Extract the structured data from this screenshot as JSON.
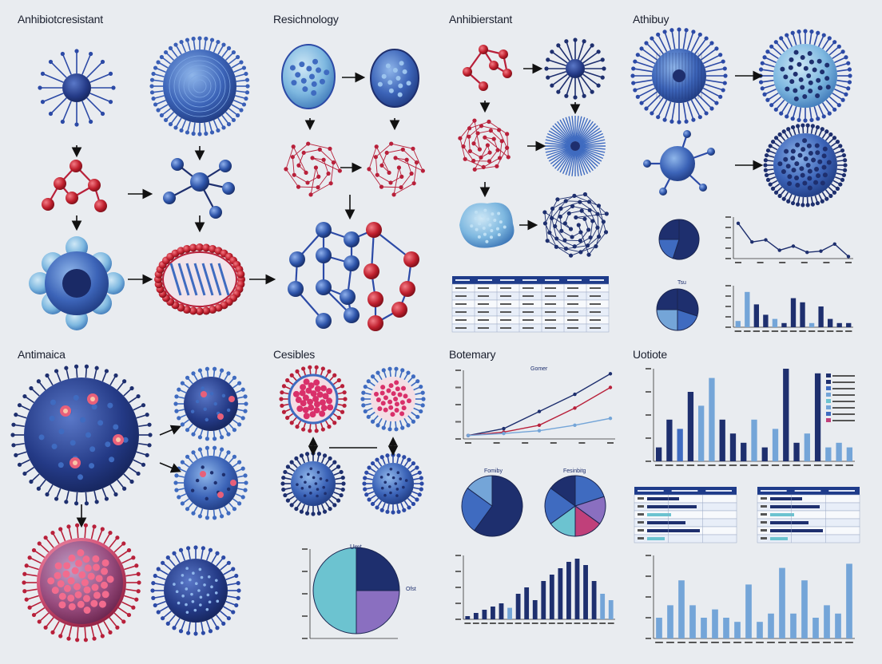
{
  "panels": {
    "p1": "Anhibiotcresistant",
    "p2": "Resichnology",
    "p3": "Anhibierstant",
    "p4": "Athibuy",
    "p5": "Antimaica",
    "p6": "Cesibles",
    "p7": "Botemary",
    "p8": "Uotiote"
  },
  "labels": {
    "pie_left_title": "Tsu",
    "line_title": "Gomer",
    "pie_left": "Fomiby",
    "pie_right": "Fesinbitg",
    "pie_bottom": "Umt",
    "pie_bottom_side": "Ofst"
  },
  "colors": {
    "navy": "#1e2f6e",
    "blue": "#3f6bc0",
    "light_blue": "#74a5d8",
    "teal": "#6cc3d0",
    "red": "#b8203a",
    "purple": "#8a6fc0",
    "background": "#e9ecf0"
  },
  "chart_data": [
    {
      "type": "pie",
      "name": "right-top-pie",
      "values": [
        55,
        20,
        25
      ]
    },
    {
      "type": "line",
      "name": "right-top-line",
      "values": [
        0.85,
        0.4,
        0.45,
        0.2,
        0.3,
        0.15,
        0.18,
        0.35,
        0.05
      ]
    },
    {
      "type": "pie",
      "name": "right-small-pie",
      "values": [
        30,
        20,
        25,
        25
      ]
    },
    {
      "type": "bar",
      "name": "right-top-bar",
      "values": [
        0.15,
        0.85,
        0.55,
        0.3,
        0.2,
        0.1,
        0.7,
        0.6,
        0.1,
        0.5,
        0.2,
        0.1,
        0.1
      ]
    },
    {
      "type": "line",
      "name": "middle-line",
      "series": [
        {
          "values": [
            0.05,
            0.15,
            0.4,
            0.65,
            0.95
          ]
        },
        {
          "values": [
            0.05,
            0.1,
            0.2,
            0.45,
            0.75
          ]
        },
        {
          "values": [
            0.05,
            0.08,
            0.12,
            0.2,
            0.3
          ]
        }
      ]
    },
    {
      "type": "pie",
      "name": "middle-pie-left",
      "values": [
        60,
        25,
        15
      ]
    },
    {
      "type": "pie",
      "name": "middle-pie-right",
      "values": [
        20,
        15,
        15,
        15,
        20,
        15
      ]
    },
    {
      "type": "bar",
      "name": "bottom-middle-bar",
      "values": [
        0.05,
        0.1,
        0.15,
        0.2,
        0.25,
        0.18,
        0.4,
        0.5,
        0.3,
        0.6,
        0.7,
        0.8,
        0.9,
        0.95,
        0.85,
        0.6,
        0.4,
        0.3
      ]
    },
    {
      "type": "pie",
      "name": "bottom-pie",
      "values": [
        25,
        25,
        50
      ]
    },
    {
      "type": "bar",
      "name": "uotiote-bar",
      "values": [
        0.15,
        0.45,
        0.35,
        0.75,
        0.6,
        0.9,
        0.45,
        0.3,
        0.2,
        0.45,
        0.15,
        0.35,
        1.0,
        0.2,
        0.3,
        0.95,
        0.15,
        0.2,
        0.15
      ]
    },
    {
      "type": "bar",
      "name": "bottom-right-bar",
      "values": [
        0.25,
        0.4,
        0.7,
        0.4,
        0.25,
        0.35,
        0.25,
        0.2,
        0.65,
        0.2,
        0.3,
        0.85,
        0.3,
        0.7,
        0.25,
        0.4,
        0.3,
        0.9
      ]
    }
  ]
}
